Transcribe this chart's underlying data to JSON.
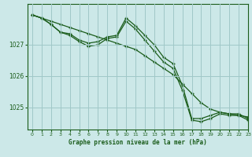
{
  "title": "Graphe pression niveau de la mer (hPa)",
  "bg_color": "#cce8e8",
  "grid_color": "#a0c8c8",
  "line_color": "#1a5c1a",
  "xlim": [
    -0.5,
    23
  ],
  "ylim": [
    1024.3,
    1028.3
  ],
  "yticks": [
    1025,
    1026,
    1027
  ],
  "xticks": [
    0,
    1,
    2,
    3,
    4,
    5,
    6,
    7,
    8,
    9,
    10,
    11,
    12,
    13,
    14,
    15,
    16,
    17,
    18,
    19,
    20,
    21,
    22,
    23
  ],
  "series1_x": [
    0,
    1,
    2,
    3,
    4,
    5,
    6,
    7,
    8,
    9,
    10,
    11,
    12,
    13,
    14,
    15,
    16,
    17,
    18,
    19,
    20,
    21,
    22,
    23
  ],
  "series1_y": [
    1027.95,
    1027.85,
    1027.75,
    1027.65,
    1027.55,
    1027.45,
    1027.35,
    1027.25,
    1027.15,
    1027.05,
    1026.95,
    1026.85,
    1026.65,
    1026.45,
    1026.25,
    1026.05,
    1025.75,
    1025.45,
    1025.15,
    1024.95,
    1024.85,
    1024.8,
    1024.75,
    1024.7
  ],
  "series2_x": [
    0,
    1,
    2,
    3,
    4,
    5,
    6,
    7,
    8,
    9,
    10,
    11,
    12,
    13,
    14,
    15,
    16,
    17,
    18,
    19,
    20,
    21,
    22,
    23
  ],
  "series2_y": [
    1027.95,
    1027.85,
    1027.65,
    1027.4,
    1027.35,
    1027.15,
    1027.05,
    1027.1,
    1027.25,
    1027.3,
    1027.85,
    1027.6,
    1027.3,
    1027.0,
    1026.6,
    1026.4,
    1025.7,
    1024.65,
    1024.65,
    1024.75,
    1024.85,
    1024.8,
    1024.8,
    1024.65
  ],
  "series3_x": [
    0,
    1,
    2,
    3,
    4,
    5,
    6,
    7,
    8,
    9,
    10,
    11,
    12,
    13,
    14,
    15,
    16,
    17,
    18,
    19,
    20,
    21,
    22,
    23
  ],
  "series3_y": [
    1027.95,
    1027.85,
    1027.65,
    1027.4,
    1027.3,
    1027.1,
    1026.95,
    1027.0,
    1027.2,
    1027.25,
    1027.75,
    1027.5,
    1027.15,
    1026.8,
    1026.45,
    1026.25,
    1025.55,
    1024.6,
    1024.55,
    1024.65,
    1024.8,
    1024.75,
    1024.75,
    1024.6
  ]
}
